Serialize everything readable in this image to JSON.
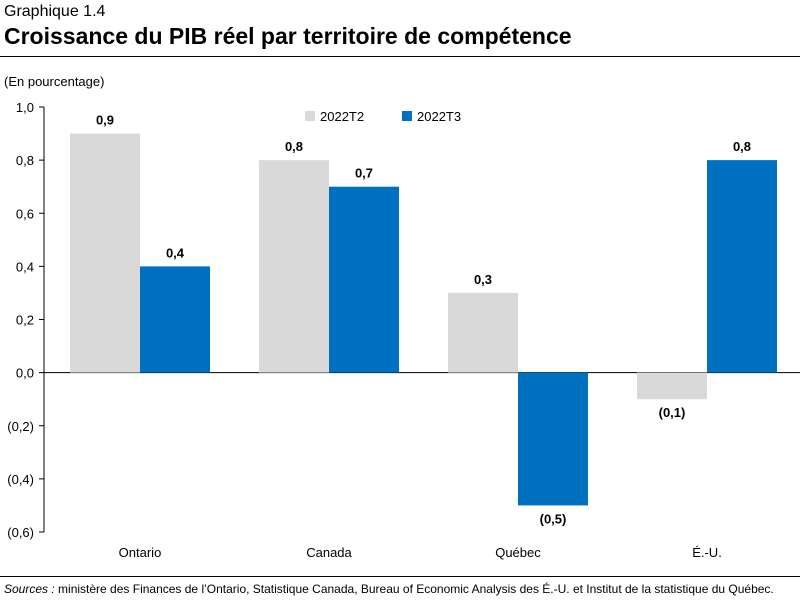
{
  "header": {
    "graph_label": "Graphique 1.4",
    "title": "Croissance du PIB réel par territoire de compétence"
  },
  "source": {
    "lead": "Sources :",
    "text": " ministère des Finances de l’Ontario, Statistique Canada, Bureau of Economic Analysis des É.-U. et Institut de la statistique du Québec."
  },
  "colors": {
    "series_a": "#d9d9d9",
    "series_b": "#0070c0",
    "axis": "#000000"
  },
  "chart_data": {
    "type": "bar",
    "unit_label": "(En pourcentage)",
    "categories": [
      "Ontario",
      "Canada",
      "Québec",
      "É.-U."
    ],
    "series": [
      {
        "name": "2022T2",
        "values": [
          0.9,
          0.8,
          0.3,
          -0.1
        ],
        "labels": [
          "0,9",
          "0,8",
          "0,3",
          "(0,1)"
        ]
      },
      {
        "name": "2022T3",
        "values": [
          0.4,
          0.7,
          -0.5,
          0.8
        ],
        "labels": [
          "0,4",
          "0,7",
          "(0,5)",
          "0,8"
        ]
      }
    ],
    "ylim": [
      -0.6,
      1.0
    ],
    "yticks": [
      1.0,
      0.8,
      0.6,
      0.4,
      0.2,
      0.0,
      -0.2,
      -0.4,
      -0.6
    ],
    "ytick_labels": [
      "1,0",
      "0,8",
      "0,6",
      "0,4",
      "0,2",
      "0,0",
      "(0,2)",
      "(0,4)",
      "(0,6)"
    ],
    "legend_position": "top-center",
    "grid": false
  }
}
